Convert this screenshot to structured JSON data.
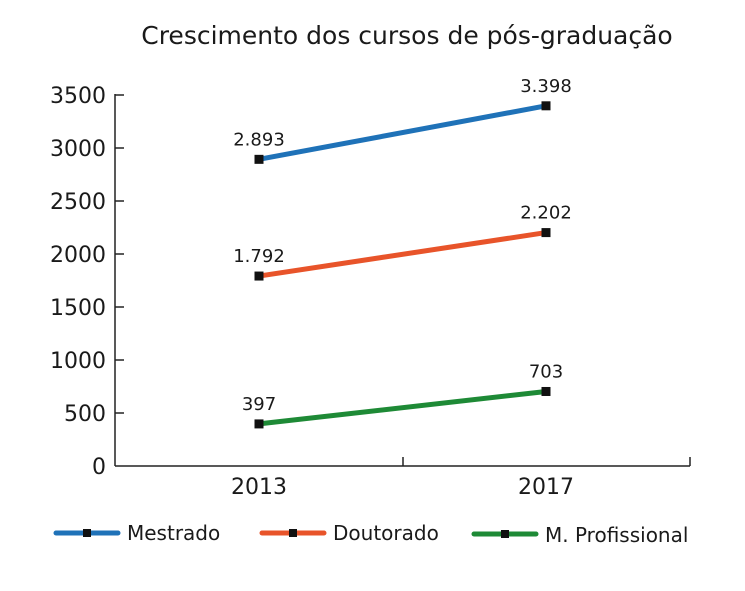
{
  "chart_data": {
    "type": "line",
    "title": "Crescimento dos cursos de pós-graduação",
    "xlabel": "",
    "ylabel": "",
    "categories": [
      "2013",
      "2017"
    ],
    "series": [
      {
        "name": "Mestrado",
        "values": [
          2893,
          3398
        ],
        "labels": [
          "2.893",
          "3.398"
        ],
        "color": "#1f72b8"
      },
      {
        "name": "Doutorado",
        "values": [
          1792,
          2202
        ],
        "labels": [
          "1.792",
          "2.202"
        ],
        "color": "#e8542a"
      },
      {
        "name": "M. Profissional",
        "values": [
          397,
          703
        ],
        "labels": [
          "397",
          "703"
        ],
        "color": "#1e8a36"
      }
    ],
    "ylim": [
      0,
      3500
    ],
    "yticks": [
      "0",
      "500",
      "1000",
      "1500",
      "2000",
      "2500",
      "3000",
      "3500"
    ],
    "grid": false,
    "legend_position": "bottom",
    "marker": "square",
    "marker_color": "#111111"
  }
}
